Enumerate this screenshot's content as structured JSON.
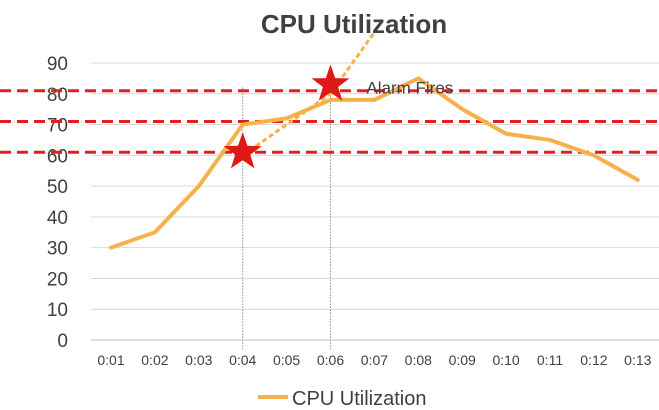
{
  "chart_data": {
    "type": "line",
    "title": "CPU Utilization",
    "categories": [
      "0:01",
      "0:02",
      "0:03",
      "0:04",
      "0:05",
      "0:06",
      "0:07",
      "0:08",
      "0:09",
      "0:10",
      "0:11",
      "0:12",
      "0:13"
    ],
    "series": [
      {
        "name": "CPU Utilization",
        "values": [
          30,
          35,
          50,
          70,
          72,
          78,
          78,
          85,
          75,
          67,
          65,
          60,
          52
        ],
        "color": "#F5B14A"
      }
    ],
    "projection": {
      "color": "#F5B14A",
      "style": "dashed",
      "points": [
        {
          "x": "0:04",
          "y": 60
        },
        {
          "x": "0:06",
          "y": 80
        },
        {
          "x": "0:07",
          "y": 100
        }
      ]
    },
    "threshold_lines": {
      "values": [
        61,
        71,
        81
      ],
      "color": "#E02020",
      "style": "dashed"
    },
    "markers": [
      {
        "x": "0:04",
        "y": 61,
        "shape": "star",
        "color": "#E01818"
      },
      {
        "x": "0:06",
        "y": 83,
        "shape": "star",
        "color": "#E01818"
      }
    ],
    "vertical_guides": [
      "0:04",
      "0:06"
    ],
    "annotations": [
      {
        "text": "Alarm Fires",
        "x": "0:07",
        "y": 82
      }
    ],
    "ylim": [
      0,
      90
    ],
    "yticks": [
      0,
      10,
      20,
      30,
      40,
      50,
      60,
      70,
      80,
      90
    ],
    "grid": true,
    "legend": "bottom"
  }
}
